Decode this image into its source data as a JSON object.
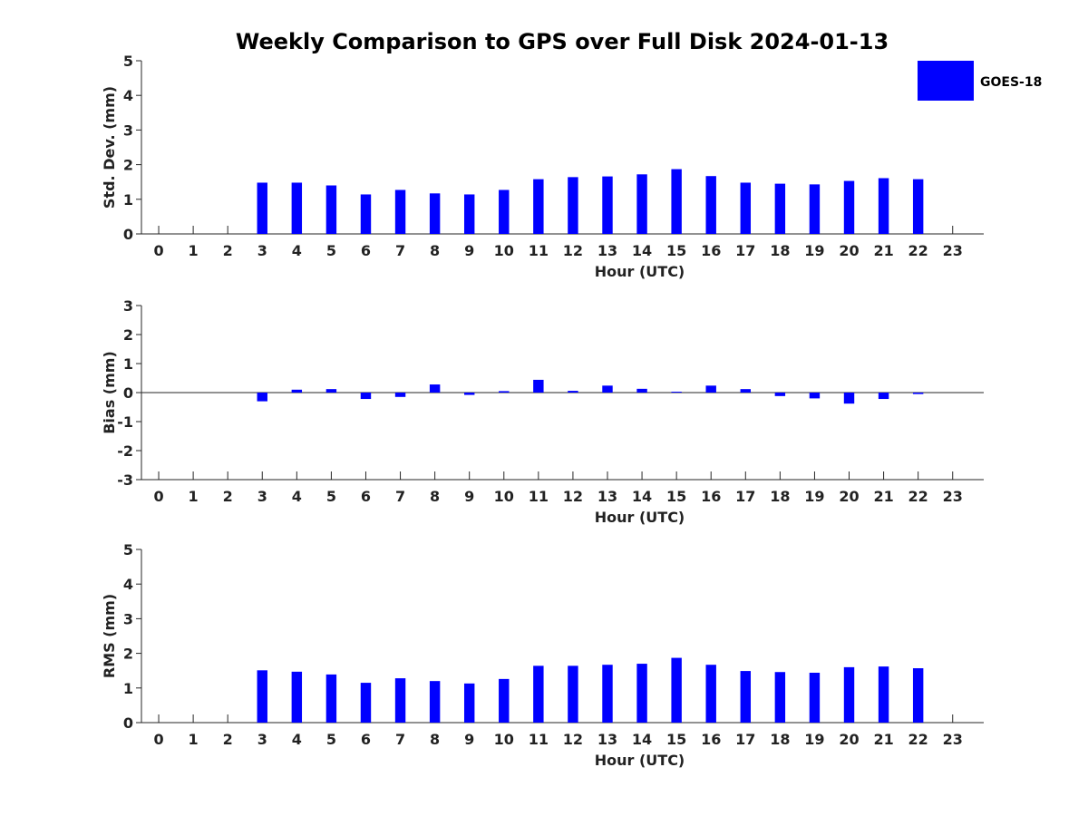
{
  "title": "Weekly Comparison to GPS over Full Disk 2024-01-13",
  "colors": {
    "bar": "#0000ff",
    "axis": "#262626",
    "text": "#222222"
  },
  "legend": {
    "label": "GOES-18",
    "placement": "top-right"
  },
  "chart_data": [
    {
      "type": "bar",
      "name": "std-dev",
      "ylabel": "Std. Dev. (mm)",
      "xlabel": "Hour (UTC)",
      "xlim": [
        -0.5,
        23.9
      ],
      "ylim": [
        0,
        5
      ],
      "yticks": [
        0,
        1,
        2,
        3,
        4,
        5
      ],
      "xticks": [
        0,
        1,
        2,
        3,
        4,
        5,
        6,
        7,
        8,
        9,
        10,
        11,
        12,
        13,
        14,
        15,
        16,
        17,
        18,
        19,
        20,
        21,
        22,
        23
      ],
      "x": [
        3,
        4,
        5,
        6,
        7,
        8,
        9,
        10,
        11,
        12,
        13,
        14,
        15,
        16,
        17,
        18,
        19,
        20,
        21,
        22
      ],
      "values": [
        1.48,
        1.48,
        1.4,
        1.14,
        1.27,
        1.17,
        1.14,
        1.27,
        1.58,
        1.64,
        1.66,
        1.72,
        1.87,
        1.67,
        1.48,
        1.45,
        1.43,
        1.53,
        1.61,
        1.58
      ]
    },
    {
      "type": "bar",
      "name": "bias",
      "ylabel": "Bias (mm)",
      "xlabel": "Hour (UTC)",
      "xlim": [
        -0.5,
        23.9
      ],
      "ylim": [
        -3,
        3
      ],
      "yticks": [
        -3,
        -2,
        -1,
        0,
        1,
        2,
        3
      ],
      "xticks": [
        0,
        1,
        2,
        3,
        4,
        5,
        6,
        7,
        8,
        9,
        10,
        11,
        12,
        13,
        14,
        15,
        16,
        17,
        18,
        19,
        20,
        21,
        22,
        23
      ],
      "x": [
        3,
        4,
        5,
        6,
        7,
        8,
        9,
        10,
        11,
        12,
        13,
        14,
        15,
        16,
        17,
        18,
        19,
        20,
        21,
        22
      ],
      "values": [
        -0.3,
        0.1,
        0.12,
        -0.22,
        -0.15,
        0.28,
        -0.08,
        0.05,
        0.44,
        0.06,
        0.24,
        0.13,
        0.03,
        0.24,
        0.12,
        -0.12,
        -0.2,
        -0.38,
        -0.22,
        -0.05
      ]
    },
    {
      "type": "bar",
      "name": "rms",
      "ylabel": "RMS (mm)",
      "xlabel": "Hour (UTC)",
      "xlim": [
        -0.5,
        23.9
      ],
      "ylim": [
        0,
        5
      ],
      "yticks": [
        0,
        1,
        2,
        3,
        4,
        5
      ],
      "xticks": [
        0,
        1,
        2,
        3,
        4,
        5,
        6,
        7,
        8,
        9,
        10,
        11,
        12,
        13,
        14,
        15,
        16,
        17,
        18,
        19,
        20,
        21,
        22,
        23
      ],
      "x": [
        3,
        4,
        5,
        6,
        7,
        8,
        9,
        10,
        11,
        12,
        13,
        14,
        15,
        16,
        17,
        18,
        19,
        20,
        21,
        22
      ],
      "values": [
        1.51,
        1.47,
        1.39,
        1.15,
        1.28,
        1.2,
        1.13,
        1.26,
        1.64,
        1.64,
        1.67,
        1.7,
        1.87,
        1.67,
        1.49,
        1.46,
        1.44,
        1.6,
        1.62,
        1.57
      ]
    }
  ]
}
